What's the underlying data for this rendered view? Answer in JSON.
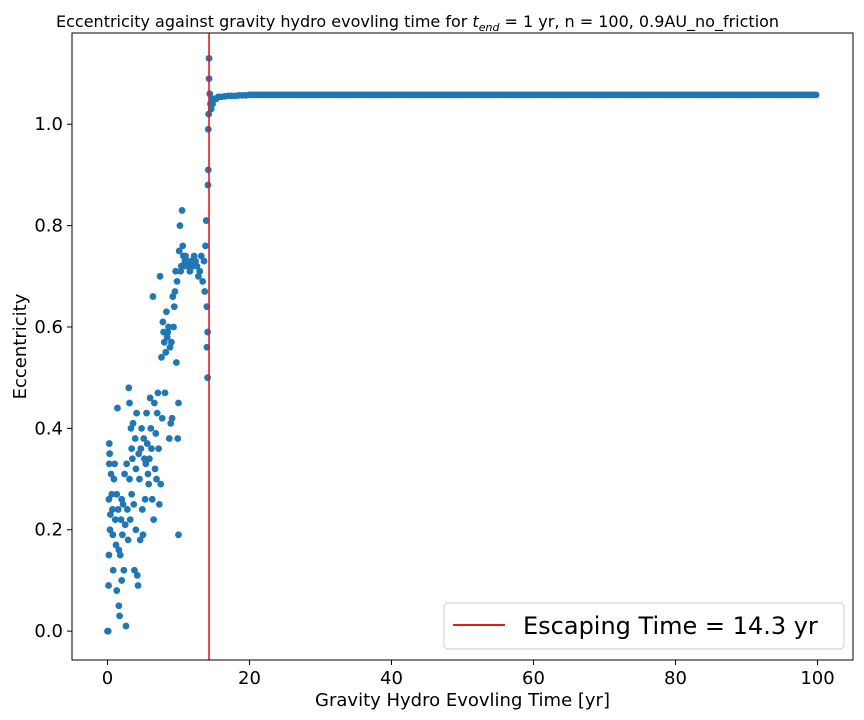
{
  "chart_data": {
    "type": "scatter",
    "title_prefix": "Eccentricity against gravity hydro evovling time for ",
    "title_var": "t",
    "title_sub": "end",
    "title_suffix": " = 1 yr, n = 100, 0.9AU_no_friction",
    "xlabel": "Gravity Hydro Evovling Time [yr]",
    "ylabel": "Eccentricity",
    "xlim": [
      -5,
      105
    ],
    "ylim": [
      -0.057,
      1.18
    ],
    "xticks": [
      0,
      20,
      40,
      60,
      80,
      100
    ],
    "xtick_labels": [
      "0",
      "20",
      "40",
      "60",
      "80",
      "100"
    ],
    "yticks": [
      0.0,
      0.2,
      0.4,
      0.6,
      0.8,
      1.0
    ],
    "ytick_labels": [
      "0.0",
      "0.2",
      "0.4",
      "0.6",
      "0.8",
      "1.0"
    ],
    "grid": false,
    "legend_position": "lower right",
    "escape_line": {
      "x": 14.3,
      "label": "Escaping Time = 14.3 yr",
      "color": "#e41a1c"
    },
    "series": [
      {
        "color": "#1f77b4",
        "points": [
          [
            0.0,
            0.0
          ],
          [
            0.1,
            0.0
          ],
          [
            0.15,
            0.09
          ],
          [
            0.2,
            0.15
          ],
          [
            0.2,
            0.26
          ],
          [
            0.25,
            0.33
          ],
          [
            0.25,
            0.37
          ],
          [
            0.3,
            0.35
          ],
          [
            0.35,
            0.2
          ],
          [
            0.4,
            0.23
          ],
          [
            0.5,
            0.31
          ],
          [
            0.6,
            0.27
          ],
          [
            0.7,
            0.24
          ],
          [
            0.75,
            0.19
          ],
          [
            0.8,
            0.12
          ],
          [
            0.9,
            0.3
          ],
          [
            1.0,
            0.33
          ],
          [
            1.1,
            0.22
          ],
          [
            1.2,
            0.17
          ],
          [
            1.3,
            0.27
          ],
          [
            1.3,
            0.08
          ],
          [
            1.4,
            0.44
          ],
          [
            1.5,
            0.24
          ],
          [
            1.6,
            0.16
          ],
          [
            1.6,
            0.05
          ],
          [
            1.7,
            0.03
          ],
          [
            1.8,
            0.15
          ],
          [
            1.9,
            0.22
          ],
          [
            2.0,
            0.26
          ],
          [
            2.0,
            0.1
          ],
          [
            2.1,
            0.19
          ],
          [
            2.2,
            0.25
          ],
          [
            2.3,
            0.12
          ],
          [
            2.4,
            0.31
          ],
          [
            2.5,
            0.21
          ],
          [
            2.6,
            0.01
          ],
          [
            2.7,
            0.33
          ],
          [
            2.8,
            0.24
          ],
          [
            2.9,
            0.18
          ],
          [
            3.0,
            0.48
          ],
          [
            3.1,
            0.45
          ],
          [
            3.1,
            0.3
          ],
          [
            3.2,
            0.22
          ],
          [
            3.3,
            0.4
          ],
          [
            3.4,
            0.36
          ],
          [
            3.4,
            0.27
          ],
          [
            3.5,
            0.34
          ],
          [
            3.6,
            0.41
          ],
          [
            3.7,
            0.25
          ],
          [
            3.8,
            0.12
          ],
          [
            3.9,
            0.38
          ],
          [
            4.0,
            0.32
          ],
          [
            4.0,
            0.2
          ],
          [
            4.1,
            0.43
          ],
          [
            4.2,
            0.11
          ],
          [
            4.3,
            0.09
          ],
          [
            4.4,
            0.35
          ],
          [
            4.5,
            0.3
          ],
          [
            4.6,
            0.18
          ],
          [
            4.7,
            0.36
          ],
          [
            4.8,
            0.4
          ],
          [
            4.9,
            0.24
          ],
          [
            5.0,
            0.19
          ],
          [
            5.1,
            0.38
          ],
          [
            5.2,
            0.34
          ],
          [
            5.3,
            0.26
          ],
          [
            5.4,
            0.33
          ],
          [
            5.5,
            0.43
          ],
          [
            5.6,
            0.37
          ],
          [
            5.7,
            0.31
          ],
          [
            5.8,
            0.29
          ],
          [
            5.9,
            0.34
          ],
          [
            6.0,
            0.46
          ],
          [
            6.1,
            0.4
          ],
          [
            6.2,
            0.36
          ],
          [
            6.3,
            0.26
          ],
          [
            6.4,
            0.66
          ],
          [
            6.5,
            0.22
          ],
          [
            6.6,
            0.45
          ],
          [
            6.7,
            0.32
          ],
          [
            6.8,
            0.39
          ],
          [
            6.9,
            0.3
          ],
          [
            7.0,
            0.43
          ],
          [
            7.1,
            0.47
          ],
          [
            7.2,
            0.36
          ],
          [
            7.3,
            0.25
          ],
          [
            7.4,
            0.7
          ],
          [
            7.5,
            0.29
          ],
          [
            7.6,
            0.54
          ],
          [
            7.7,
            0.42
          ],
          [
            7.8,
            0.61
          ],
          [
            7.9,
            0.59
          ],
          [
            8.0,
            0.57
          ],
          [
            8.1,
            0.47
          ],
          [
            8.2,
            0.55
          ],
          [
            8.3,
            0.63
          ],
          [
            8.4,
            0.58
          ],
          [
            8.5,
            0.59
          ],
          [
            8.6,
            0.6
          ],
          [
            8.7,
            0.38
          ],
          [
            8.8,
            0.56
          ],
          [
            8.9,
            0.41
          ],
          [
            9.0,
            0.57
          ],
          [
            9.1,
            0.42
          ],
          [
            9.2,
            0.66
          ],
          [
            9.3,
            0.6
          ],
          [
            9.4,
            0.64
          ],
          [
            9.5,
            0.67
          ],
          [
            9.6,
            0.71
          ],
          [
            9.7,
            0.53
          ],
          [
            9.8,
            0.69
          ],
          [
            9.9,
            0.38
          ],
          [
            10.0,
            0.45
          ],
          [
            10.0,
            0.19
          ],
          [
            10.1,
            0.75
          ],
          [
            10.2,
            0.8
          ],
          [
            10.3,
            0.71
          ],
          [
            10.4,
            0.72
          ],
          [
            10.5,
            0.83
          ],
          [
            10.6,
            0.76
          ],
          [
            10.7,
            0.74
          ],
          [
            10.8,
            0.72
          ],
          [
            10.9,
            0.73
          ],
          [
            11.0,
            0.74
          ],
          [
            11.2,
            0.73
          ],
          [
            11.4,
            0.72
          ],
          [
            11.6,
            0.71
          ],
          [
            11.8,
            0.73
          ],
          [
            12.0,
            0.72
          ],
          [
            12.2,
            0.74
          ],
          [
            12.4,
            0.73
          ],
          [
            12.6,
            0.72
          ],
          [
            12.8,
            0.7
          ],
          [
            13.0,
            0.71
          ],
          [
            13.2,
            0.74
          ],
          [
            13.4,
            0.69
          ],
          [
            13.6,
            0.73
          ],
          [
            13.7,
            0.67
          ],
          [
            13.8,
            0.76
          ],
          [
            13.9,
            0.81
          ],
          [
            14.0,
            0.56
          ],
          [
            14.0,
            0.64
          ],
          [
            14.1,
            0.59
          ],
          [
            14.1,
            0.5
          ],
          [
            14.15,
            0.88
          ],
          [
            14.2,
            0.91
          ],
          [
            14.2,
            0.99
          ],
          [
            14.25,
            1.02
          ],
          [
            14.3,
            1.13
          ],
          [
            14.3,
            1.09
          ],
          [
            14.4,
            1.06
          ],
          [
            14.5,
            1.04
          ],
          [
            14.6,
            1.03
          ],
          [
            14.7,
            1.05
          ],
          [
            14.8,
            1.04
          ],
          [
            14.9,
            1.05
          ],
          [
            15.0,
            1.05
          ],
          [
            15.3,
            1.05
          ],
          [
            15.6,
            1.054
          ],
          [
            16.0,
            1.054
          ],
          [
            16.5,
            1.055
          ],
          [
            17.0,
            1.056
          ],
          [
            17.5,
            1.056
          ],
          [
            18.0,
            1.056
          ],
          [
            18.5,
            1.057
          ],
          [
            19.0,
            1.057
          ],
          [
            19.5,
            1.057
          ],
          [
            20.0,
            1.058
          ]
        ],
        "plateau": {
          "x_start": 20.0,
          "x_end": 100.0,
          "y": 1.058,
          "step": 0.35
        }
      }
    ]
  }
}
